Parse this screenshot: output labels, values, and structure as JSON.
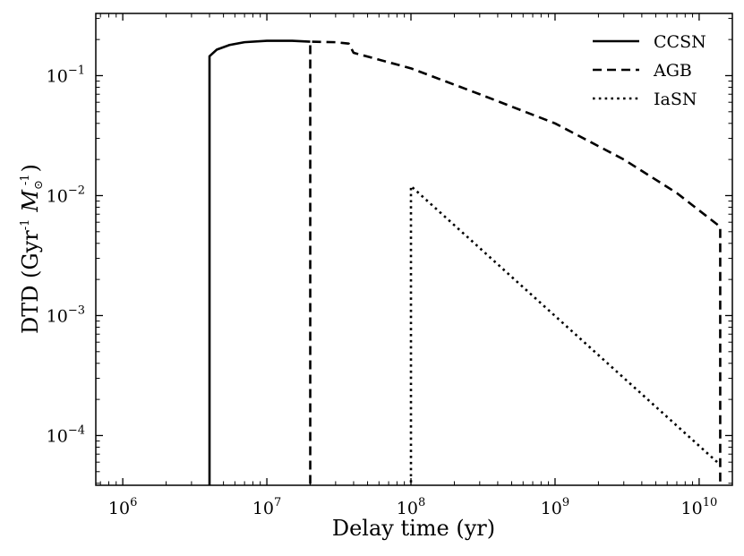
{
  "chart_data": {
    "type": "line",
    "xscale": "log",
    "yscale": "log",
    "xlim": [
      650000,
      17000000000
    ],
    "ylim": [
      3.85e-05,
      0.33
    ],
    "xlabel": "Delay time (yr)",
    "ylabel": "DTD (Gyr",
    "ylabel_sup": "-1",
    "ylabel_unit": "M",
    "ylabel_unit_sub": "⊙",
    "ylabel_unit_sup": "-1",
    "ylabel_close": ")",
    "xtick_base": "10",
    "xticks": [
      {
        "value": 1000000,
        "exp": "6"
      },
      {
        "value": 10000000,
        "exp": "7"
      },
      {
        "value": 100000000,
        "exp": "8"
      },
      {
        "value": 1000000000,
        "exp": "9"
      },
      {
        "value": 10000000000,
        "exp": "10"
      }
    ],
    "ytick_base": "10",
    "yticks": [
      {
        "value": 0.0001,
        "exp": "−4"
      },
      {
        "value": 0.001,
        "exp": "−3"
      },
      {
        "value": 0.01,
        "exp": "−2"
      },
      {
        "value": 0.1,
        "exp": "−1"
      }
    ],
    "grid": false,
    "legend_position": "top-right",
    "series": [
      {
        "name": "CCSN",
        "style": "solid",
        "points": [
          [
            4000000,
            1e-05
          ],
          [
            4000000,
            0.145
          ],
          [
            4500000,
            0.165
          ],
          [
            5500000,
            0.18
          ],
          [
            7000000,
            0.19
          ],
          [
            10000000,
            0.195
          ],
          [
            15000000,
            0.195
          ],
          [
            20000000,
            0.192
          ]
        ]
      },
      {
        "name": "AGB",
        "style": "dashed",
        "points": [
          [
            20000000,
            1e-05
          ],
          [
            20000000,
            0.192
          ],
          [
            30000000,
            0.19
          ],
          [
            37000000,
            0.185
          ],
          [
            40000000,
            0.155
          ],
          [
            100000000,
            0.115
          ],
          [
            300000000,
            0.07
          ],
          [
            1000000000,
            0.04
          ],
          [
            3000000000,
            0.02
          ],
          [
            7000000000,
            0.0105
          ],
          [
            14000000000,
            0.0055
          ],
          [
            14000000000,
            1e-05
          ]
        ]
      },
      {
        "name": "IaSN",
        "style": "dotted",
        "points": [
          [
            100000000,
            1e-05
          ],
          [
            100000000,
            0.012
          ],
          [
            14000000000,
            5.7e-05
          ]
        ]
      }
    ]
  }
}
